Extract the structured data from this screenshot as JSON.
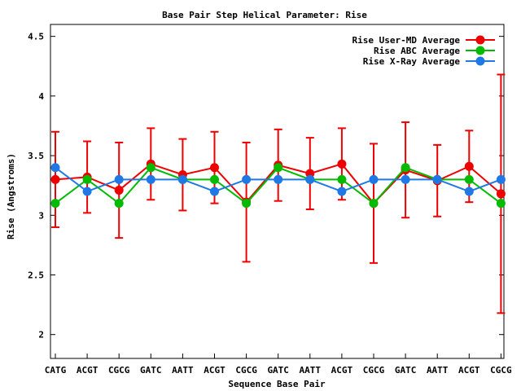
{
  "chart_data": {
    "type": "line",
    "title": "Base Pair Step Helical Parameter: Rise",
    "xlabel": "Sequence Base Pair",
    "ylabel": "Rise (Angstroms)",
    "categories": [
      "CATG",
      "ACGT",
      "CGCG",
      "GATC",
      "AATT",
      "ACGT",
      "CGCG",
      "GATC",
      "AATT",
      "ACGT",
      "CGCG",
      "GATC",
      "AATT",
      "ACGT",
      "CGCG"
    ],
    "ylim": [
      1.8,
      4.6
    ],
    "yticks": [
      "2",
      "2.5",
      "3",
      "3.5",
      "4",
      "4.5"
    ],
    "yticks_values": [
      2,
      2.5,
      3,
      3.5,
      4,
      4.5
    ],
    "legend_position": "top-right",
    "grid": false,
    "series": [
      {
        "name": "Rise User-MD Average",
        "color": "#ee0000",
        "values": [
          3.3,
          3.32,
          3.21,
          3.43,
          3.34,
          3.4,
          3.11,
          3.42,
          3.35,
          3.43,
          3.1,
          3.38,
          3.29,
          3.41,
          3.18
        ],
        "error": [
          0.4,
          0.3,
          0.4,
          0.3,
          0.3,
          0.3,
          0.5,
          0.3,
          0.3,
          0.3,
          0.5,
          0.4,
          0.3,
          0.3,
          1.0
        ]
      },
      {
        "name": "Rise ABC Average",
        "color": "#00bb00",
        "values": [
          3.1,
          3.3,
          3.1,
          3.4,
          3.3,
          3.3,
          3.1,
          3.4,
          3.3,
          3.3,
          3.1,
          3.4,
          3.3,
          3.3,
          3.1
        ]
      },
      {
        "name": "Rise X-Ray Average",
        "color": "#1e78e6",
        "values": [
          3.4,
          3.2,
          3.3,
          3.3,
          3.3,
          3.2,
          3.3,
          3.3,
          3.3,
          3.2,
          3.3,
          3.3,
          3.3,
          3.2,
          3.3
        ]
      }
    ]
  }
}
